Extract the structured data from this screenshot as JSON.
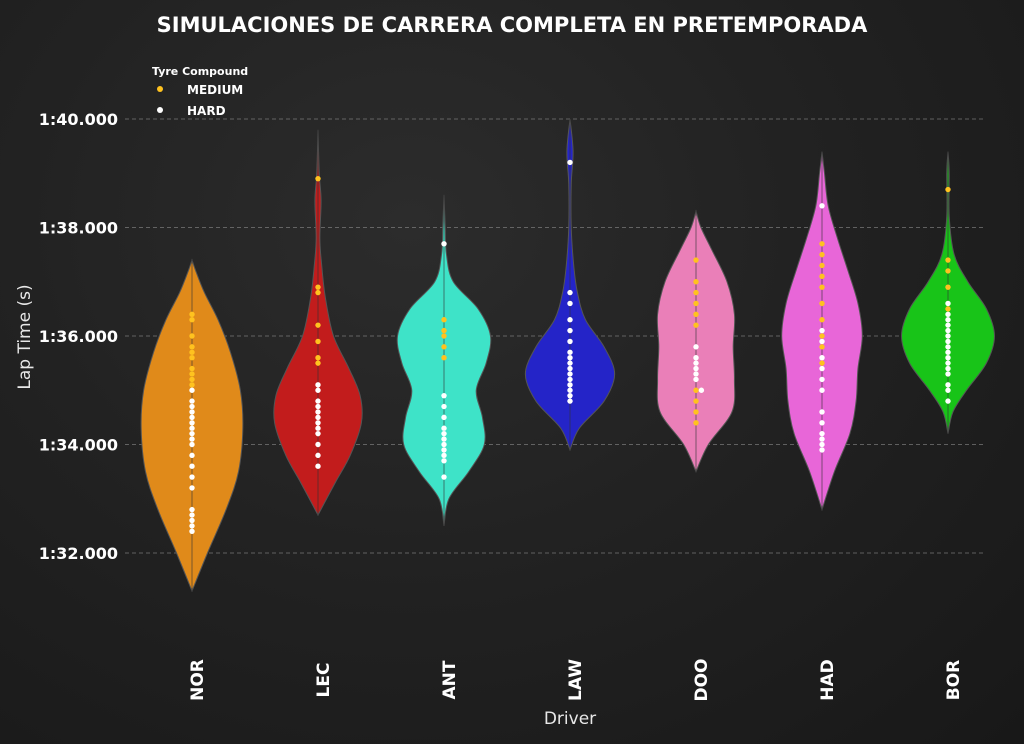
{
  "chart_data": {
    "type": "violin",
    "title": "SIMULACIONES DE CARRERA COMPLETA EN PRETEMPORADA",
    "xlabel": "Driver",
    "ylabel": "Lap Time (s)",
    "y_axis_seconds": [
      92,
      100
    ],
    "y_ticks": [
      {
        "label": "1:32.000",
        "seconds": 92
      },
      {
        "label": "1:34.000",
        "seconds": 94
      },
      {
        "label": "1:36.000",
        "seconds": 96
      },
      {
        "label": "1:38.000",
        "seconds": 98
      },
      {
        "label": "1:40.000",
        "seconds": 100
      }
    ],
    "grid": "horizontal dashed",
    "legend": {
      "title": "Tyre Compound",
      "placement": "top-left",
      "entries": [
        {
          "label": "MEDIUM",
          "color": "#ffc21f"
        },
        {
          "label": "HARD",
          "color": "#ffffff"
        }
      ]
    },
    "drivers": [
      {
        "name": "NOR",
        "color": "#e08a1a",
        "violin_profile": [
          [
            91.3,
            0
          ],
          [
            92.0,
            0.25
          ],
          [
            92.8,
            0.55
          ],
          [
            93.5,
            0.75
          ],
          [
            94.3,
            0.82
          ],
          [
            95.0,
            0.78
          ],
          [
            95.7,
            0.62
          ],
          [
            96.3,
            0.42
          ],
          [
            96.8,
            0.2
          ],
          [
            97.2,
            0.06
          ],
          [
            97.4,
            0
          ]
        ],
        "medium": [
          95.1,
          95.2,
          95.3,
          95.4,
          95.6,
          95.7,
          95.8,
          96.0,
          96.3,
          96.4
        ],
        "hard": [
          92.4,
          92.5,
          92.6,
          92.7,
          92.8,
          93.2,
          93.4,
          93.6,
          93.8,
          94.0,
          94.1,
          94.2,
          94.3,
          94.4,
          94.5,
          94.6,
          94.7,
          94.8,
          95.0
        ]
      },
      {
        "name": "LEC",
        "color": "#c21c1c",
        "violin_profile": [
          [
            92.7,
            0
          ],
          [
            93.3,
            0.28
          ],
          [
            93.8,
            0.52
          ],
          [
            94.4,
            0.7
          ],
          [
            94.9,
            0.68
          ],
          [
            95.4,
            0.5
          ],
          [
            96.0,
            0.25
          ],
          [
            96.7,
            0.12
          ],
          [
            97.3,
            0.06
          ],
          [
            97.8,
            0.03
          ],
          [
            98.5,
            0.05
          ],
          [
            99.0,
            0.02
          ],
          [
            99.8,
            0
          ]
        ],
        "medium": [
          95.5,
          95.6,
          95.9,
          96.2,
          96.8,
          96.9,
          98.9
        ],
        "hard": [
          93.6,
          93.8,
          94.0,
          94.2,
          94.3,
          94.4,
          94.5,
          94.6,
          94.7,
          94.8,
          95.0,
          95.1
        ]
      },
      {
        "name": "ANT",
        "color": "#3ee3c8",
        "violin_profile": [
          [
            92.5,
            0
          ],
          [
            93.0,
            0.08
          ],
          [
            93.5,
            0.4
          ],
          [
            94.0,
            0.65
          ],
          [
            94.5,
            0.62
          ],
          [
            95.0,
            0.52
          ],
          [
            95.5,
            0.68
          ],
          [
            96.0,
            0.75
          ],
          [
            96.5,
            0.55
          ],
          [
            97.0,
            0.15
          ],
          [
            97.5,
            0.04
          ],
          [
            98.0,
            0.02
          ],
          [
            98.6,
            0
          ]
        ],
        "medium": [
          95.6,
          95.8,
          96.0,
          96.1,
          96.3
        ],
        "hard": [
          93.4,
          93.7,
          93.8,
          93.9,
          94.0,
          94.1,
          94.2,
          94.3,
          94.5,
          94.7,
          94.9,
          97.7
        ]
      },
      {
        "name": "LAW",
        "color": "#2424c8",
        "violin_profile": [
          [
            93.9,
            0
          ],
          [
            94.3,
            0.15
          ],
          [
            94.8,
            0.55
          ],
          [
            95.3,
            0.72
          ],
          [
            95.8,
            0.55
          ],
          [
            96.3,
            0.25
          ],
          [
            96.8,
            0.12
          ],
          [
            97.3,
            0.06
          ],
          [
            98.0,
            0.02
          ],
          [
            98.8,
            0.02
          ],
          [
            99.4,
            0.05
          ],
          [
            100.0,
            0
          ]
        ],
        "medium": [],
        "hard": [
          94.8,
          94.9,
          95.0,
          95.1,
          95.2,
          95.3,
          95.4,
          95.5,
          95.6,
          95.7,
          95.9,
          96.1,
          96.3,
          96.6,
          96.8,
          99.2
        ]
      },
      {
        "name": "DOO",
        "color": "#ea7fb8",
        "violin_profile": [
          [
            93.5,
            0
          ],
          [
            94.0,
            0.2
          ],
          [
            94.6,
            0.58
          ],
          [
            95.2,
            0.62
          ],
          [
            95.8,
            0.6
          ],
          [
            96.4,
            0.62
          ],
          [
            97.0,
            0.5
          ],
          [
            97.6,
            0.25
          ],
          [
            98.0,
            0.08
          ],
          [
            98.3,
            0
          ]
        ],
        "medium": [
          94.4,
          94.6,
          94.8,
          95.0,
          96.2,
          96.4,
          96.6,
          96.8,
          97.0,
          97.4
        ],
        "hard": [
          95.0,
          95.2,
          95.3,
          95.4,
          95.5,
          95.6,
          95.8
        ]
      },
      {
        "name": "HAD",
        "color": "#e866d8",
        "violin_profile": [
          [
            92.8,
            0
          ],
          [
            93.5,
            0.2
          ],
          [
            94.2,
            0.45
          ],
          [
            94.8,
            0.55
          ],
          [
            95.4,
            0.58
          ],
          [
            96.0,
            0.65
          ],
          [
            96.6,
            0.58
          ],
          [
            97.2,
            0.42
          ],
          [
            97.8,
            0.25
          ],
          [
            98.4,
            0.1
          ],
          [
            99.0,
            0.04
          ],
          [
            99.4,
            0
          ]
        ],
        "medium": [
          95.5,
          95.8,
          96.0,
          96.3,
          96.6,
          96.9,
          97.1,
          97.3,
          97.5,
          97.7
        ],
        "hard": [
          93.9,
          94.0,
          94.1,
          94.2,
          94.4,
          94.6,
          95.0,
          95.2,
          95.4,
          95.6,
          95.9,
          96.1,
          98.4
        ]
      },
      {
        "name": "BOR",
        "color": "#18c418",
        "violin_profile": [
          [
            94.2,
            0
          ],
          [
            94.6,
            0.08
          ],
          [
            95.0,
            0.3
          ],
          [
            95.5,
            0.62
          ],
          [
            96.0,
            0.75
          ],
          [
            96.5,
            0.62
          ],
          [
            97.0,
            0.32
          ],
          [
            97.5,
            0.1
          ],
          [
            98.2,
            0.02
          ],
          [
            99.0,
            0.02
          ],
          [
            99.4,
            0
          ]
        ],
        "medium": [
          96.5,
          96.9,
          97.2,
          97.4,
          98.7
        ],
        "hard": [
          94.8,
          95.0,
          95.1,
          95.3,
          95.4,
          95.5,
          95.6,
          95.7,
          95.8,
          95.9,
          96.0,
          96.1,
          96.2,
          96.3,
          96.4,
          96.6
        ]
      }
    ]
  }
}
